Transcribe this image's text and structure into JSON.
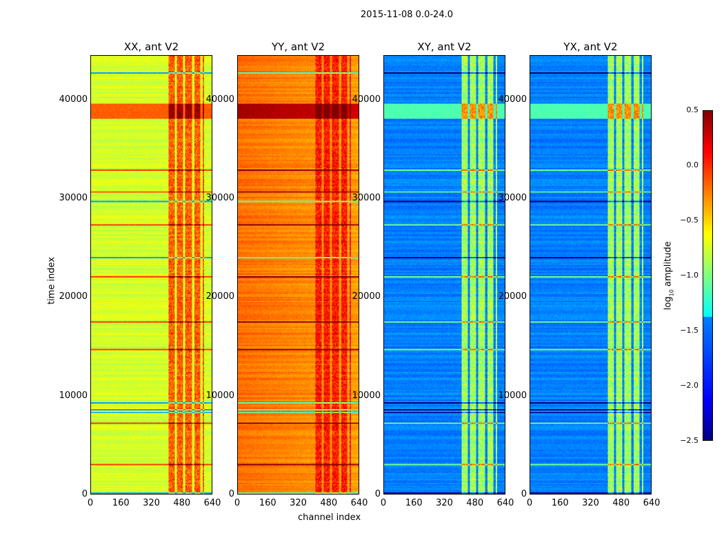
{
  "chart_data": {
    "type": "heatmap",
    "title": "2015-11-08 0.0-24.0",
    "xlabel": "channel index",
    "ylabel": "time index",
    "xlim": [
      0,
      640
    ],
    "ylim": [
      0,
      44500
    ],
    "xticks": [
      "0",
      "160",
      "320",
      "480",
      "640"
    ],
    "yticks": [
      "0",
      "10000",
      "20000",
      "30000",
      "40000"
    ],
    "colormap": "jet",
    "panels": [
      {
        "title": "XX, ant V2",
        "base": -0.75,
        "band_level": -0.15
      },
      {
        "title": "YY, ant V2",
        "base": -0.35,
        "band_level": 0.05
      },
      {
        "title": "XY, ant V2",
        "base": -1.75,
        "band_level": -0.9
      },
      {
        "title": "YX, ant V2",
        "base": -1.75,
        "band_level": -0.9
      }
    ],
    "colorbar": {
      "label": "log10 amplitude",
      "label_main": "log",
      "label_sub": "10",
      "label_rest": " amplitude",
      "clim": [
        -2.5,
        0.5
      ],
      "ticks": [
        "0.5",
        "0.0",
        "−0.5",
        "−1.0",
        "−1.5",
        "−2.0",
        "−2.5"
      ]
    }
  }
}
